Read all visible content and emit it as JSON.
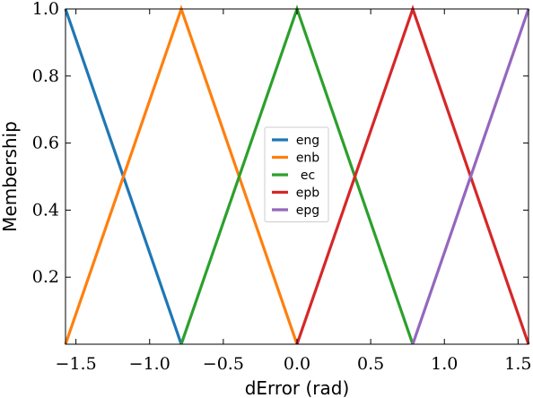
{
  "chart_data": {
    "type": "line",
    "xlabel": "dError (rad)",
    "ylabel": "Membership",
    "xlim": [
      -1.5708,
      1.5708
    ],
    "ylim": [
      0,
      1
    ],
    "x_ticks": [
      -1.5,
      -1.0,
      -0.5,
      0.0,
      0.5,
      1.0,
      1.5
    ],
    "x_tick_labels": [
      "−1.5",
      "−1.0",
      "−0.5",
      "0.0",
      "0.5",
      "1.0",
      "1.5"
    ],
    "y_ticks": [
      0.2,
      0.4,
      0.6,
      0.8,
      1.0
    ],
    "y_tick_labels": [
      "0.2",
      "0.4",
      "0.6",
      "0.8",
      "1.0"
    ],
    "grid": false,
    "legend_position": "center",
    "series": [
      {
        "name": "eng",
        "color": "#1f77b4",
        "x": [
          -1.5708,
          -0.7854
        ],
        "y": [
          1,
          0
        ]
      },
      {
        "name": "enb",
        "color": "#ff7f0e",
        "x": [
          -1.5708,
          -0.7854,
          0.0
        ],
        "y": [
          0,
          1,
          0
        ]
      },
      {
        "name": "ec",
        "color": "#2ca02c",
        "x": [
          -0.7854,
          0.0,
          0.7854
        ],
        "y": [
          0,
          1,
          0
        ]
      },
      {
        "name": "epb",
        "color": "#d62728",
        "x": [
          0.0,
          0.7854,
          1.5708
        ],
        "y": [
          0,
          1,
          0
        ]
      },
      {
        "name": "epg",
        "color": "#9467bd",
        "x": [
          0.7854,
          1.5708
        ],
        "y": [
          0,
          1
        ]
      }
    ]
  }
}
